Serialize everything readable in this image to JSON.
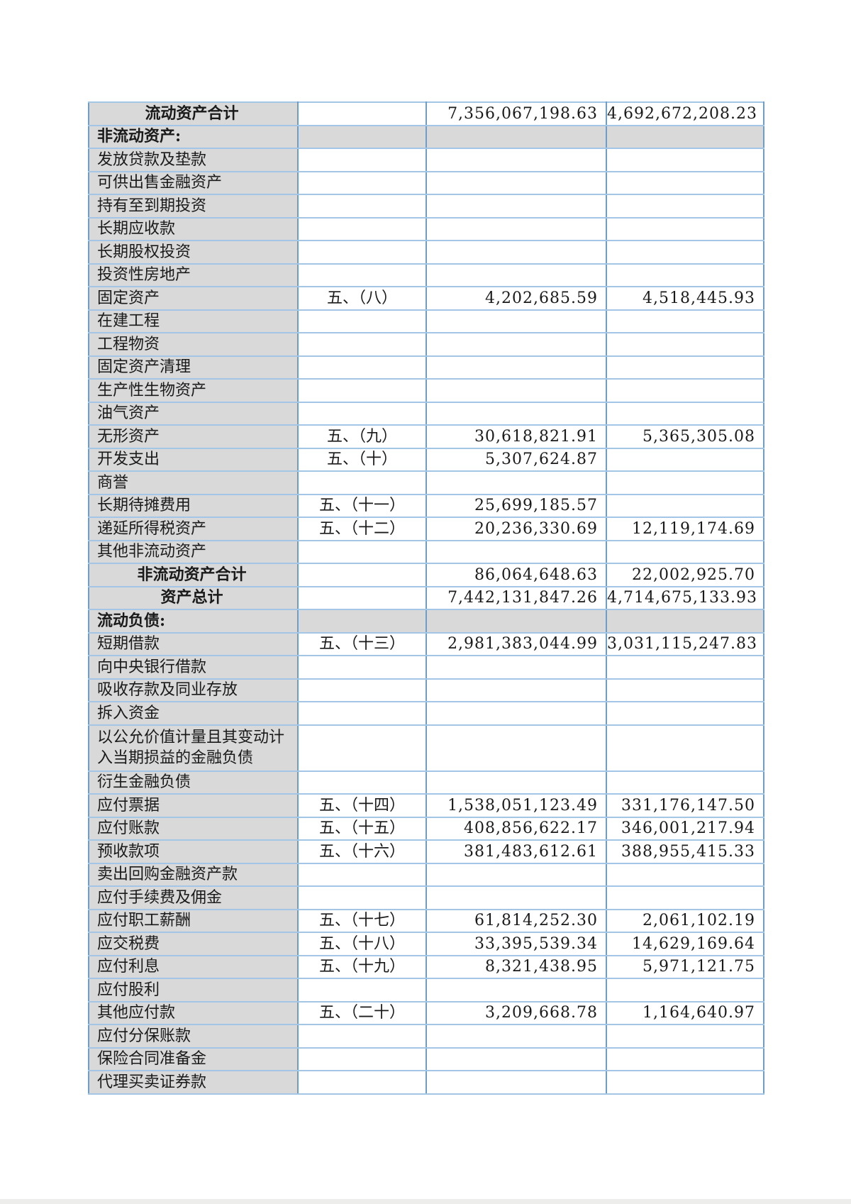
{
  "page": {
    "background": "#ffffff",
    "bottom_strip_color": "#ededec"
  },
  "table": {
    "colors": {
      "cell_gray": "#d9d9d9",
      "border_horizontal": "#a3c6e6",
      "border_vertical": "#6d9dc9"
    },
    "rows": [
      {
        "type": "total",
        "label": "流动资产合计",
        "current": "7,356,067,198.63",
        "prior": "4,692,672,208.23"
      },
      {
        "type": "section",
        "label": "非流动资产:"
      },
      {
        "type": "item",
        "label": "发放贷款及垫款"
      },
      {
        "type": "item",
        "label": "可供出售金融资产"
      },
      {
        "type": "item",
        "label": "持有至到期投资"
      },
      {
        "type": "item",
        "label": "长期应收款"
      },
      {
        "type": "item",
        "label": "长期股权投资"
      },
      {
        "type": "item",
        "label": "投资性房地产"
      },
      {
        "type": "item",
        "label": "固定资产",
        "note": "五、（八）",
        "current": "4,202,685.59",
        "prior": "4,518,445.93"
      },
      {
        "type": "item",
        "label": "在建工程"
      },
      {
        "type": "item",
        "label": "工程物资"
      },
      {
        "type": "item",
        "label": "固定资产清理"
      },
      {
        "type": "item",
        "label": "生产性生物资产"
      },
      {
        "type": "item",
        "label": "油气资产"
      },
      {
        "type": "item",
        "label": "无形资产",
        "note": "五、（九）",
        "current": "30,618,821.91",
        "prior": "5,365,305.08"
      },
      {
        "type": "item",
        "label": "开发支出",
        "note": "五、（十）",
        "current": "5,307,624.87"
      },
      {
        "type": "item",
        "label": "商誉"
      },
      {
        "type": "item",
        "label": "长期待摊费用",
        "note": "五、（十一）",
        "current": "25,699,185.57"
      },
      {
        "type": "item",
        "label": "递延所得税资产",
        "note": "五、（十二）",
        "current": "20,236,330.69",
        "prior": "12,119,174.69"
      },
      {
        "type": "item",
        "label": "其他非流动资产"
      },
      {
        "type": "total",
        "label": "非流动资产合计",
        "current": "86,064,648.63",
        "prior": "22,002,925.70"
      },
      {
        "type": "total",
        "label": "资产总计",
        "current": "7,442,131,847.26",
        "prior": "4,714,675,133.93"
      },
      {
        "type": "section",
        "label": "流动负债:"
      },
      {
        "type": "item",
        "label": "短期借款",
        "note": "五、（十三）",
        "current": "2,981,383,044.99",
        "prior": "3,031,115,247.83"
      },
      {
        "type": "item",
        "label": "向中央银行借款"
      },
      {
        "type": "item",
        "label": "吸收存款及同业存放"
      },
      {
        "type": "item",
        "label": "拆入资金"
      },
      {
        "type": "item",
        "label": "以公允价值计量且其变动计\n入当期损益的金融负债",
        "tall": true
      },
      {
        "type": "item",
        "label": "衍生金融负债"
      },
      {
        "type": "item",
        "label": "应付票据",
        "note": "五、（十四）",
        "current": "1,538,051,123.49",
        "prior": "331,176,147.50"
      },
      {
        "type": "item",
        "label": "应付账款",
        "note": "五、（十五）",
        "current": "408,856,622.17",
        "prior": "346,001,217.94"
      },
      {
        "type": "item",
        "label": "预收款项",
        "note": "五、（十六）",
        "current": "381,483,612.61",
        "prior": "388,955,415.33"
      },
      {
        "type": "item",
        "label": "卖出回购金融资产款"
      },
      {
        "type": "item",
        "label": "应付手续费及佣金"
      },
      {
        "type": "item",
        "label": "应付职工薪酬",
        "note": "五、（十七）",
        "current": "61,814,252.30",
        "prior": "2,061,102.19"
      },
      {
        "type": "item",
        "label": "应交税费",
        "note": "五、（十八）",
        "current": "33,395,539.34",
        "prior": "14,629,169.64"
      },
      {
        "type": "item",
        "label": "应付利息",
        "note": "五、（十九）",
        "current": "8,321,438.95",
        "prior": "5,971,121.75"
      },
      {
        "type": "item",
        "label": "应付股利"
      },
      {
        "type": "item",
        "label": "其他应付款",
        "note": "五、（二十）",
        "current": "3,209,668.78",
        "prior": "1,164,640.97"
      },
      {
        "type": "item",
        "label": "应付分保账款"
      },
      {
        "type": "item",
        "label": "保险合同准备金"
      },
      {
        "type": "item",
        "label": "代理买卖证券款"
      }
    ]
  }
}
